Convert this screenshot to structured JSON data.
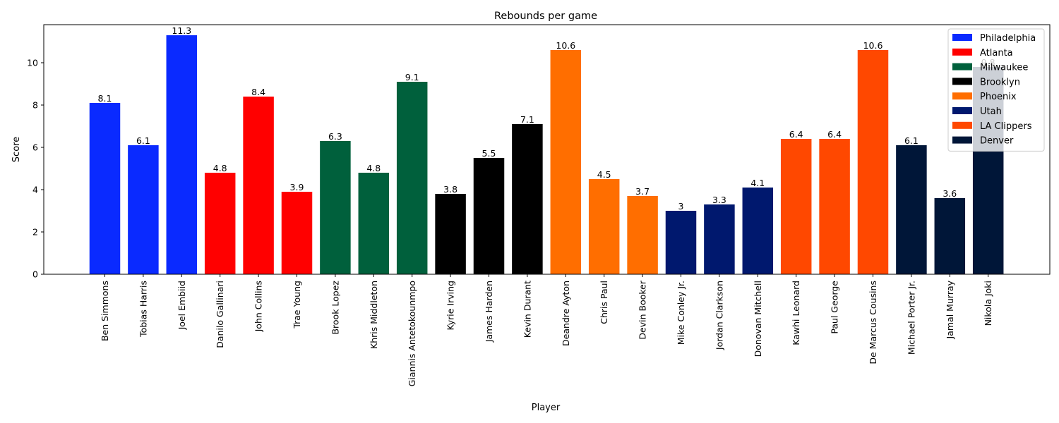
{
  "chart_data": {
    "type": "bar",
    "title": "Rebounds per game",
    "xlabel": "Player",
    "ylabel": "Score",
    "ylim": [
      0,
      11.8
    ],
    "yticks": [
      0,
      2,
      4,
      6,
      8,
      10
    ],
    "grid": false,
    "legend_position": "top-right",
    "categories": [
      "Ben Simmons",
      "Tobias Harris",
      "Joel Embiid",
      "Danilo Gallinari",
      "John Collins",
      "Trae Young",
      "Brook Lopez",
      "Khris Middleton",
      "Giannis Antetokounmpo",
      "Kyrie Irving",
      "James Harden",
      "Kevin Durant",
      "Deandre Ayton",
      "Chris Paul",
      "Devin Booker",
      "Mike Conley Jr.",
      "Jordan Clarkson",
      "Donovan Mitchell",
      "Kawhi Leonard",
      "Paul George",
      "De Marcus Cousins",
      "Michael Porter Jr.",
      "Jamal Murray",
      "Nikola Joki"
    ],
    "values": [
      8.1,
      6.1,
      11.3,
      4.8,
      8.4,
      3.9,
      6.3,
      4.8,
      9.1,
      3.8,
      5.5,
      7.1,
      10.6,
      4.5,
      3.7,
      3,
      3.3,
      4.1,
      6.4,
      6.4,
      10.6,
      6.1,
      3.6,
      9.8
    ],
    "data_labels": [
      "8.1",
      "6.1",
      "11.3",
      "4.8",
      "8.4",
      "3.9",
      "6.3",
      "4.8",
      "9.1",
      "3.8",
      "5.5",
      "7.1",
      "10.6",
      "4.5",
      "3.7",
      "3",
      "3.3",
      "4.1",
      "6.4",
      "6.4",
      "10.6",
      "6.1",
      "3.6",
      "9.8"
    ],
    "teams": [
      "Philadelphia",
      "Philadelphia",
      "Philadelphia",
      "Atlanta",
      "Atlanta",
      "Atlanta",
      "Milwaukee",
      "Milwaukee",
      "Milwaukee",
      "Brooklyn",
      "Brooklyn",
      "Brooklyn",
      "Phoenix",
      "Phoenix",
      "Phoenix",
      "Utah",
      "Utah",
      "Utah",
      "LA Clippers",
      "LA Clippers",
      "LA Clippers",
      "Denver",
      "Denver",
      "Denver"
    ],
    "legend": [
      {
        "name": "Philadelphia",
        "color": "#0a2aff"
      },
      {
        "name": "Atlanta",
        "color": "#ff0000"
      },
      {
        "name": "Milwaukee",
        "color": "#00603c"
      },
      {
        "name": "Brooklyn",
        "color": "#000000"
      },
      {
        "name": "Phoenix",
        "color": "#ff6e00"
      },
      {
        "name": "Utah",
        "color": "#00186e"
      },
      {
        "name": "LA Clippers",
        "color": "#ff4800"
      },
      {
        "name": "Denver",
        "color": "#001638"
      }
    ]
  }
}
